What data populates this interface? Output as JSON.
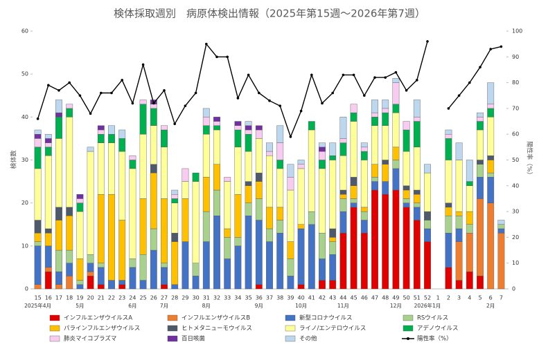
{
  "chart_data": {
    "type": "stacked_bar_line",
    "title": "検体採取週別　病原体検出情報（2025年第15週～2026年第7週）",
    "y_label": "検体数",
    "y2_label": "陽性率（%）",
    "categories": [
      "15",
      "16",
      "17",
      "18",
      "19",
      "20",
      "21",
      "22",
      "23",
      "24",
      "25",
      "26",
      "27",
      "28",
      "29",
      "30",
      "31",
      "32",
      "33",
      "34",
      "35",
      "36",
      "37",
      "38",
      "39",
      "40",
      "41",
      "42",
      "43",
      "44",
      "45",
      "46",
      "47",
      "48",
      "49",
      "50",
      "51",
      "52",
      "1",
      "2",
      "3",
      "4",
      "5",
      "6",
      "7"
    ],
    "month_labels": [
      {
        "label": "2025年4月",
        "at": "15"
      },
      {
        "label": "5月",
        "at": "19"
      },
      {
        "label": "6月",
        "at": "24"
      },
      {
        "label": "7月",
        "at": "27"
      },
      {
        "label": "8月",
        "at": "31"
      },
      {
        "label": "9月",
        "at": "36"
      },
      {
        "label": "10月",
        "at": "40"
      },
      {
        "label": "11月",
        "at": "44"
      },
      {
        "label": "12月",
        "at": "49"
      },
      {
        "label": "2026年1月",
        "at": "52"
      },
      {
        "label": "2月",
        "at": "6"
      }
    ],
    "ylim": [
      0,
      60
    ],
    "yticks": [
      0,
      10,
      20,
      30,
      40,
      50,
      60
    ],
    "y2lim": [
      0,
      100
    ],
    "y2ticks": [
      0,
      10,
      20,
      30,
      40,
      50,
      60,
      70,
      80,
      90,
      100
    ],
    "grid": false,
    "series": [
      {
        "name": "インフルエンザウイルスA",
        "color": "#e00000",
        "values": [
          0,
          4,
          0,
          0,
          0,
          3,
          1,
          0,
          1,
          0,
          0,
          0,
          1,
          0,
          0,
          0,
          0,
          0,
          0,
          0,
          0,
          1,
          0,
          0,
          0,
          1,
          0,
          2,
          2,
          13,
          19,
          13,
          23,
          22,
          23,
          19,
          16,
          11,
          null,
          5,
          2,
          4,
          3,
          0,
          0
        ]
      },
      {
        "name": "インフルエンザウイルスB",
        "color": "#ed7d31",
        "values": [
          1,
          1,
          1,
          3,
          0,
          1,
          0,
          0,
          0,
          0,
          0,
          0,
          0,
          0,
          0,
          0,
          0,
          0,
          0,
          0,
          0,
          0,
          0,
          0,
          0,
          0,
          0,
          0,
          0,
          0,
          0,
          0,
          0,
          0,
          0,
          0,
          0,
          0,
          null,
          0,
          9,
          9,
          18,
          20,
          13
        ]
      },
      {
        "name": "新型コロナウイルス",
        "color": "#4472c4",
        "values": [
          9,
          5,
          3,
          3,
          1,
          2,
          4,
          2,
          1,
          5,
          2,
          9,
          4,
          1,
          11,
          3,
          11,
          17,
          7,
          10,
          17,
          15,
          11,
          13,
          3,
          13,
          15,
          5,
          6,
          5,
          1,
          3,
          2,
          3,
          5,
          1,
          3,
          3,
          null,
          8,
          3,
          0,
          5,
          6,
          1
        ]
      },
      {
        "name": "RSウイルス",
        "color": "#a9d18e",
        "values": [
          1,
          0,
          5,
          3,
          1,
          2,
          1,
          0,
          0,
          2,
          6,
          5,
          1,
          0,
          0,
          3,
          7,
          6,
          5,
          2,
          3,
          5,
          3,
          3,
          4,
          0,
          3,
          6,
          3,
          3,
          1,
          2,
          1,
          0,
          2,
          1,
          1,
          2,
          null,
          4,
          3,
          2,
          3,
          1,
          1
        ]
      },
      {
        "name": "パラインフルエンザウイルス",
        "color": "#ffc000",
        "values": [
          2,
          3,
          7,
          8,
          5,
          0,
          16,
          20,
          14,
          0,
          13,
          13,
          15,
          10,
          10,
          0,
          8,
          6,
          2,
          10,
          4,
          4,
          5,
          3,
          4,
          1,
          0,
          0,
          1,
          1,
          3,
          1,
          3,
          4,
          3,
          2,
          2,
          0,
          null,
          2,
          1,
          3,
          0,
          3,
          0
        ]
      },
      {
        "name": "ヒトメタニューモウイルス",
        "color": "#4e5a6a",
        "values": [
          3,
          1,
          3,
          2,
          0,
          0,
          0,
          0,
          0,
          0,
          0,
          2,
          0,
          2,
          0,
          0,
          0,
          0,
          0,
          0,
          1,
          2,
          0,
          0,
          0,
          0,
          0,
          0,
          2,
          1,
          2,
          0,
          0,
          1,
          0,
          1,
          1,
          2,
          null,
          1,
          0,
          0,
          1,
          1,
          0
        ]
      },
      {
        "name": "ライノ/エンテロウイルス",
        "color": "#ffff99",
        "values": [
          12,
          17,
          16,
          21,
          11,
          24,
          12,
          12,
          16,
          21,
          15,
          9,
          12,
          7,
          4,
          19,
          10,
          8,
          11,
          11,
          7,
          8,
          12,
          9,
          12,
          13,
          19,
          15,
          16,
          8,
          13,
          11,
          9,
          8,
          8,
          8,
          10,
          9,
          null,
          10,
          12,
          6,
          7,
          9,
          0
        ]
      },
      {
        "name": "アデノウイルス",
        "color": "#00b050",
        "values": [
          5,
          2,
          5,
          2,
          2,
          0,
          2,
          2,
          3,
          2,
          7,
          4,
          4,
          1,
          0,
          2,
          2,
          1,
          0,
          4,
          4,
          0,
          0,
          2,
          0,
          0,
          2,
          2,
          1,
          3,
          2,
          2,
          2,
          3,
          2,
          5,
          6,
          0,
          null,
          5,
          0,
          1,
          2,
          2,
          0
        ]
      },
      {
        "name": "肺炎マイコプラズマ",
        "color": "#f8cbf0",
        "values": [
          2,
          1,
          0,
          1,
          1,
          0,
          1,
          0,
          0,
          1,
          1,
          1,
          1,
          1,
          3,
          0,
          2,
          1,
          1,
          1,
          1,
          2,
          1,
          4,
          3,
          1,
          0,
          2,
          0,
          1,
          2,
          1,
          1,
          1,
          5,
          2,
          1,
          0,
          null,
          1,
          0,
          0,
          1,
          1,
          0
        ]
      },
      {
        "name": "百日咳菌",
        "color": "#7030a0",
        "values": [
          1,
          1,
          1,
          0,
          1,
          0,
          1,
          0,
          0,
          0,
          0,
          1,
          0,
          0,
          0,
          0,
          0,
          1,
          0,
          1,
          1,
          1,
          0,
          0,
          0,
          0,
          0,
          1,
          0,
          0,
          0,
          0,
          0,
          0,
          0,
          0,
          0,
          0,
          null,
          0,
          0,
          0,
          0,
          0,
          0
        ]
      },
      {
        "name": "その他",
        "color": "#bdd7ee",
        "values": [
          1,
          1,
          3,
          0,
          0,
          1,
          0,
          2,
          2,
          0,
          0,
          0,
          0,
          1,
          0,
          0,
          2,
          0,
          0,
          0,
          1,
          0,
          2,
          4,
          3,
          1,
          0,
          1,
          3,
          5,
          0,
          1,
          3,
          2,
          1,
          0,
          4,
          2,
          null,
          1,
          4,
          5,
          1,
          5,
          1
        ]
      },
      {
        "name": "陽性率（%）",
        "color": "#000000",
        "axis": "y2",
        "values": [
          66,
          79,
          77,
          80,
          75,
          68,
          76,
          76,
          81,
          72,
          87,
          72,
          77,
          64,
          71,
          76,
          95,
          90,
          90,
          74,
          83,
          76,
          73,
          71,
          59,
          69,
          83,
          72,
          76,
          83,
          83,
          75,
          82,
          82,
          84,
          77,
          81,
          96,
          null,
          70,
          75,
          80,
          86,
          93,
          94
        ]
      }
    ]
  }
}
